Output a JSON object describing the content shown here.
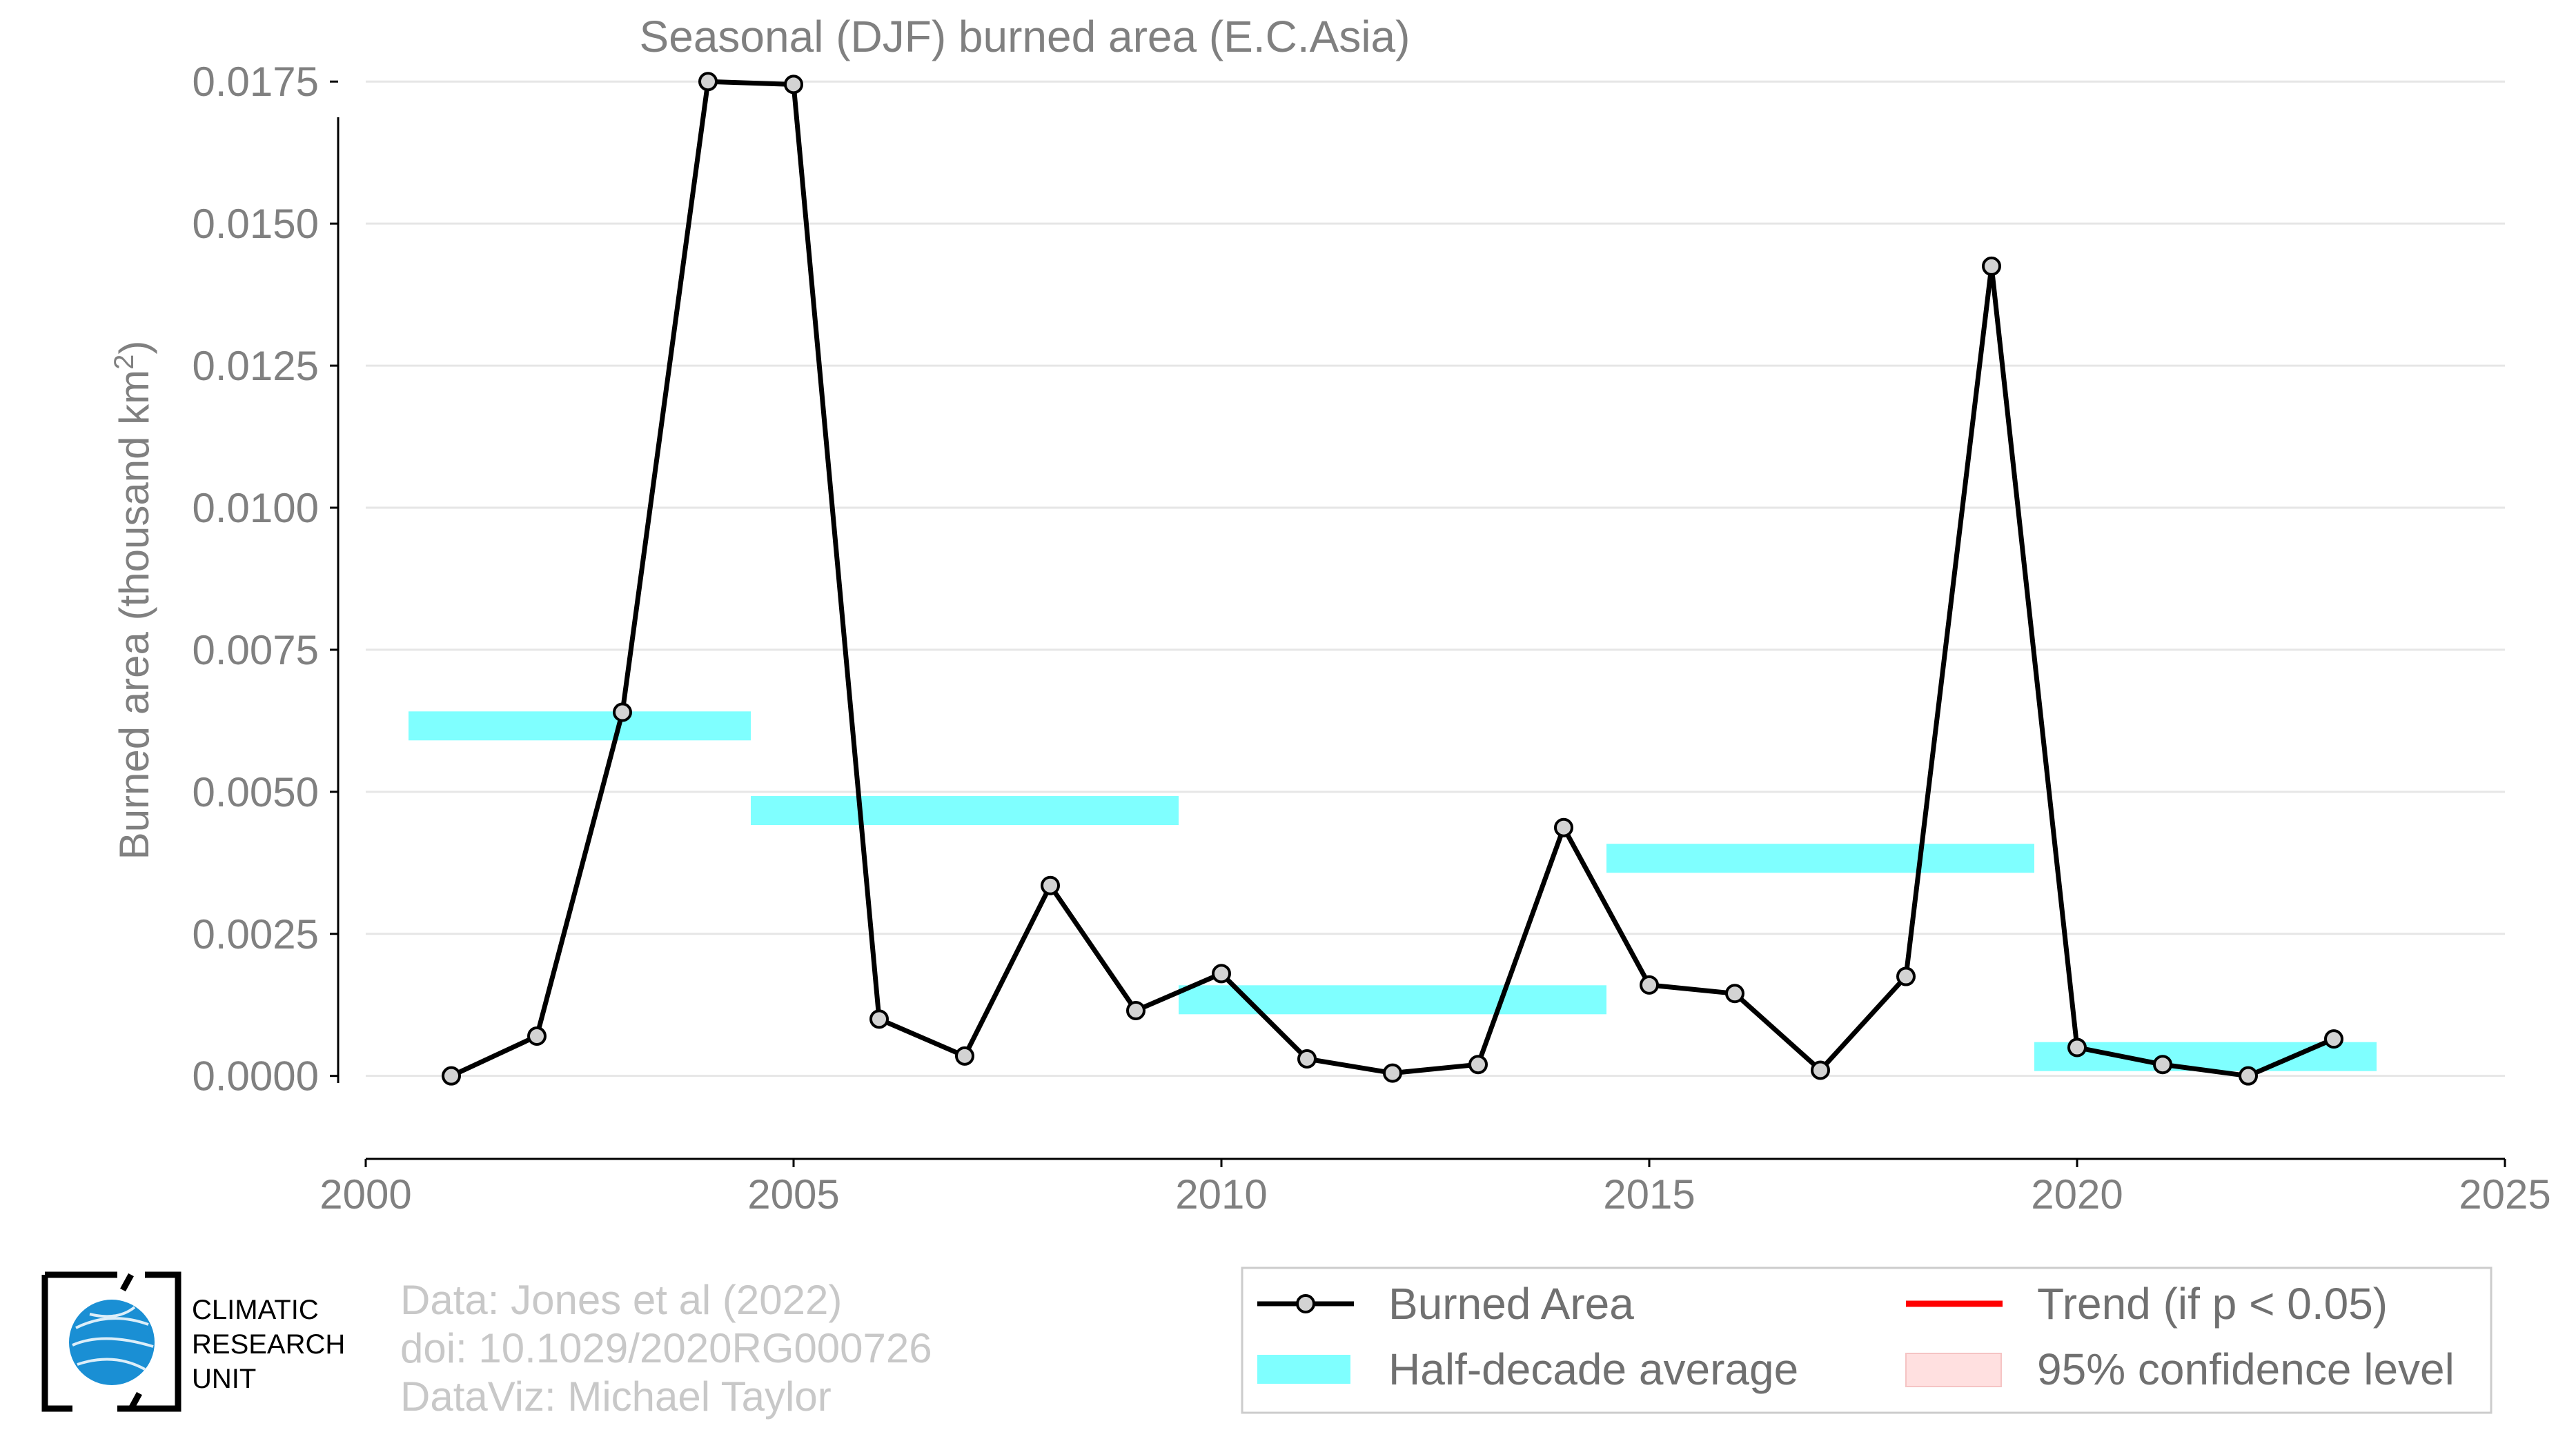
{
  "chart_data": {
    "type": "line",
    "title": "Seasonal (DJF) burned area (E.C.Asia)",
    "ylabel": "Burned area (thousand km",
    "ylabel_sup": "2",
    "ylabel_close": ")",
    "xlabel": "",
    "xlim": [
      2000,
      2025
    ],
    "ylim": [
      -0.0014,
      0.0176
    ],
    "x_ticks": [
      2000,
      2005,
      2010,
      2015,
      2020,
      2025
    ],
    "x_tick_labels": [
      "2000",
      "2005",
      "2010",
      "2015",
      "2020",
      "2025"
    ],
    "y_ticks": [
      0.0,
      0.0025,
      0.005,
      0.0075,
      0.01,
      0.0125,
      0.015,
      0.0175
    ],
    "y_tick_labels": [
      "0.0000",
      "0.0025",
      "0.0050",
      "0.0075",
      "0.0100",
      "0.0125",
      "0.0150",
      "0.0175"
    ],
    "grid": "horizontal",
    "legend_position": "bottom-right (outside plot)",
    "series": [
      {
        "name": "Burned Area",
        "color": "#000000",
        "marker_fill": "#d3d3d3",
        "x": [
          2001,
          2002,
          2003,
          2004,
          2005,
          2006,
          2007,
          2008,
          2009,
          2010,
          2011,
          2012,
          2013,
          2014,
          2015,
          2016,
          2017,
          2018,
          2019,
          2020,
          2021,
          2022,
          2023
        ],
        "values": [
          0.0,
          0.0007,
          0.0064,
          0.0175,
          0.01745,
          0.001,
          0.00035,
          0.00335,
          0.00115,
          0.0018,
          0.0003,
          5e-05,
          0.0002,
          0.00437,
          0.0016,
          0.00145,
          0.0001,
          0.00175,
          0.01425,
          0.0005,
          0.0002,
          0.0,
          0.00065
        ]
      }
    ],
    "half_decade_averages": {
      "name": "Half-decade average",
      "color": "#00ffff",
      "bars": [
        {
          "x0": 2000.5,
          "x1": 2004.5,
          "value": 0.00616
        },
        {
          "x0": 2004.5,
          "x1": 2009.5,
          "value": 0.00467
        },
        {
          "x0": 2009.5,
          "x1": 2014.5,
          "value": 0.00134
        },
        {
          "x0": 2014.5,
          "x1": 2019.5,
          "value": 0.00383
        },
        {
          "x0": 2019.5,
          "x1": 2023.5,
          "value": 0.00034
        }
      ]
    },
    "trend": {
      "name": "Trend (if p < 0.05)",
      "color": "#ff0000"
    },
    "confidence": {
      "name": "95% confidence level",
      "color": "#ffd9d9"
    }
  },
  "legend": {
    "items": [
      {
        "key": "burned",
        "label": "Burned Area"
      },
      {
        "key": "trend",
        "label": "Trend (if p < 0.05)"
      },
      {
        "key": "halfdecade",
        "label": "Half-decade average"
      },
      {
        "key": "confidence",
        "label": "95% confidence level"
      }
    ]
  },
  "credits": {
    "line1": "Data: Jones et al (2022)",
    "line2": "doi: 10.1029/2020RG000726",
    "line3": "DataViz: Michael Taylor"
  },
  "logo": {
    "line1": "CLIMATIC",
    "line2": "RESEARCH",
    "line3": "UNIT",
    "globe_color": "#1a8fd4"
  }
}
